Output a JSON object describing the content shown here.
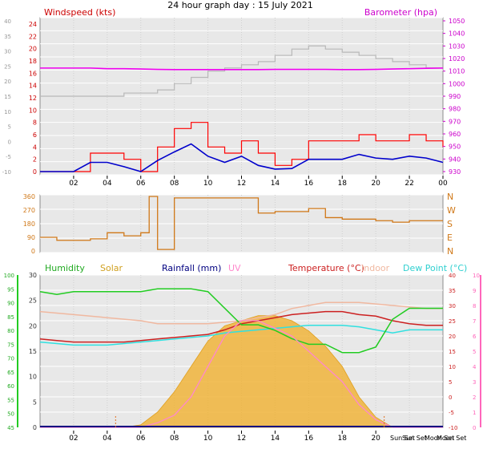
{
  "title": "24 hour graph day : 15 July 2021",
  "x_axis_labels": [
    "02",
    "04",
    "06",
    "08",
    "10",
    "12",
    "14",
    "16",
    "18",
    "20",
    "22",
    "00"
  ],
  "x_axis_labels_bottom": [
    "02",
    "04",
    "06",
    "08",
    "10",
    "12",
    "14",
    "16",
    "18",
    "20"
  ],
  "sun_moon_labels": [
    "Sun Set",
    "Sun Set",
    "Moon Set",
    "Moon Set"
  ],
  "colors": {
    "windspeed": "#ff0000",
    "wind_avg": "#0000cc",
    "barometer": "#ee00ee",
    "barometer_trace": "#b8b8b8",
    "wind_dir": "#d07818",
    "humidity": "#22cc22",
    "solar": "#f0b030",
    "rainfall": "#000080",
    "uv": "#ff88cc",
    "temperature": "#cc2020",
    "indoor": "#f0b8a0",
    "dew_point": "#30e0e0",
    "panel_bg": "#e8e8e8"
  },
  "chart_data": [
    {
      "type": "line",
      "panel": "wind_and_barometer",
      "title": "24 hour graph day : 15 July 2021",
      "left_axis_label": "Windspeed (kts)",
      "right_axis_label": "Barometer (hpa)",
      "left_ticks_red": [
        "24",
        "22",
        "20",
        "18",
        "16",
        "14",
        "12",
        "10",
        "8",
        "6",
        "4",
        "2",
        "0"
      ],
      "left_ticks_grey": [
        "40",
        "35",
        "30",
        "25",
        "20",
        "15",
        "10",
        "5",
        "0",
        "-5",
        "-10"
      ],
      "right_ticks": [
        "1050",
        "1040",
        "1030",
        "1020",
        "1010",
        "1000",
        "990",
        "980",
        "970",
        "960",
        "950",
        "940",
        "930"
      ],
      "x_hours": [
        0,
        1,
        2,
        3,
        4,
        5,
        6,
        7,
        8,
        9,
        10,
        11,
        12,
        13,
        14,
        15,
        16,
        17,
        18,
        19,
        20,
        21,
        22,
        23,
        24
      ],
      "series": [
        {
          "name": "Windspeed (kts)",
          "values": [
            0,
            0,
            0,
            3,
            3,
            2,
            0,
            4,
            7,
            8,
            4,
            3,
            5,
            3,
            1,
            2,
            5,
            5,
            5,
            6,
            5,
            5,
            6,
            5,
            4
          ]
        },
        {
          "name": "Barometer (hpa)",
          "values": [
            1011.5,
            1011.5,
            1011.5,
            1011.5,
            1011,
            1011,
            1010.8,
            1010.5,
            1010.3,
            1010.3,
            1010.3,
            1010.3,
            1010.3,
            1010.3,
            1010.5,
            1010.5,
            1010.5,
            1010.5,
            1010.3,
            1010.3,
            1010.5,
            1010.8,
            1011,
            1011.3,
            1011.5
          ]
        }
      ],
      "grey_trace_values": [
        15,
        15,
        15,
        15,
        15,
        16,
        16,
        17,
        19,
        21,
        23,
        24,
        25,
        26,
        28,
        30,
        31,
        30,
        29,
        28,
        27,
        26,
        25,
        24,
        24
      ],
      "blue_trace_values": [
        0,
        0,
        0,
        1.5,
        1.5,
        0.8,
        0,
        1.8,
        3.2,
        4.5,
        2.5,
        1.5,
        2.5,
        1,
        0.4,
        0.5,
        2,
        2,
        2,
        2.8,
        2.2,
        2,
        2.5,
        2.2,
        1.5
      ]
    },
    {
      "type": "line",
      "panel": "wind_direction",
      "left_ticks": [
        "360",
        "270",
        "180",
        "90",
        "0"
      ],
      "right_ticks": [
        "N",
        "W",
        "S",
        "E",
        "N"
      ],
      "x_hours": [
        0,
        1,
        2,
        3,
        4,
        5,
        6,
        6.5,
        7,
        8,
        9,
        10,
        11,
        12,
        13,
        14,
        15,
        16,
        17,
        18,
        19,
        20,
        21,
        22,
        23,
        24
      ],
      "series": [
        {
          "name": "Wind direction",
          "values": [
            90,
            70,
            70,
            80,
            120,
            100,
            120,
            360,
            10,
            350,
            350,
            350,
            350,
            350,
            250,
            260,
            260,
            280,
            220,
            210,
            210,
            200,
            190,
            200,
            200,
            200
          ]
        }
      ]
    },
    {
      "type": "line",
      "panel": "climate",
      "legend": [
        "Humidity",
        "Solar",
        "Rainfall (mm)",
        "UV",
        "Temperature (°C)",
        "Indoor",
        "Dew Point (°C)"
      ],
      "humidity_ticks": [
        "100",
        "95",
        "90",
        "85",
        "80",
        "75",
        "70",
        "65",
        "60",
        "55",
        "50",
        "45"
      ],
      "solar_ticks": [
        "30",
        "25",
        "20",
        "15",
        "10",
        "5",
        "0"
      ],
      "temp_ticks": [
        "40",
        "35",
        "30",
        "25",
        "20",
        "15",
        "10",
        "5",
        "0",
        "-5",
        "-10"
      ],
      "uv_ticks": [
        "10",
        "9",
        "8",
        "7",
        "6",
        "5",
        "4",
        "3",
        "2",
        "1",
        "0"
      ],
      "x_hours": [
        0,
        1,
        2,
        3,
        4,
        5,
        6,
        7,
        8,
        9,
        10,
        11,
        12,
        13,
        14,
        15,
        16,
        17,
        18,
        19,
        20,
        21,
        22,
        23,
        24
      ],
      "series": [
        {
          "name": "Humidity",
          "values": [
            94,
            93,
            94,
            94,
            94,
            94,
            94,
            95,
            95,
            95,
            94,
            88,
            82,
            82,
            80,
            77,
            75,
            75,
            72,
            72,
            74,
            84,
            88,
            88,
            88
          ]
        },
        {
          "name": "Temperature (°C)",
          "values": [
            19,
            18.5,
            18,
            18,
            18,
            18,
            18.5,
            19,
            19.5,
            20,
            20.5,
            22,
            24,
            25,
            26,
            27,
            27.5,
            28,
            28,
            27,
            26.5,
            25,
            24,
            23.5,
            23.5
          ]
        },
        {
          "name": "Dew Point (°C)",
          "values": [
            18,
            17.5,
            17,
            17,
            17,
            17.5,
            18,
            18.5,
            19,
            19.5,
            20,
            21,
            21.5,
            22,
            22.5,
            23,
            23.5,
            23.5,
            23.5,
            23,
            22,
            21,
            22,
            22,
            22
          ]
        },
        {
          "name": "Indoor",
          "values": [
            28,
            27.5,
            27,
            26.5,
            26,
            25.5,
            25,
            24,
            24,
            24,
            24,
            24.5,
            25,
            26,
            27,
            29,
            30,
            31,
            31,
            31,
            30.5,
            30,
            29.5,
            29,
            29
          ]
        },
        {
          "name": "Solar",
          "values": [
            0,
            0,
            0,
            0,
            0,
            0,
            0.5,
            3,
            7,
            12,
            17,
            20,
            21,
            22,
            22,
            21,
            19,
            16,
            12,
            6,
            2,
            0,
            0,
            0,
            0
          ]
        },
        {
          "name": "UV",
          "values": [
            0,
            0,
            0,
            0,
            0,
            0,
            0,
            0.3,
            0.8,
            2,
            4,
            6,
            7,
            7,
            6.5,
            6,
            5,
            4,
            3,
            1.5,
            0.5,
            0,
            0,
            0,
            0
          ]
        },
        {
          "name": "Rainfall (mm)",
          "values": [
            0,
            0,
            0,
            0,
            0,
            0,
            0,
            0,
            0,
            0,
            0,
            0,
            0,
            0,
            0,
            0,
            0,
            0,
            0,
            0,
            0,
            0,
            0,
            0,
            0
          ]
        }
      ]
    }
  ]
}
